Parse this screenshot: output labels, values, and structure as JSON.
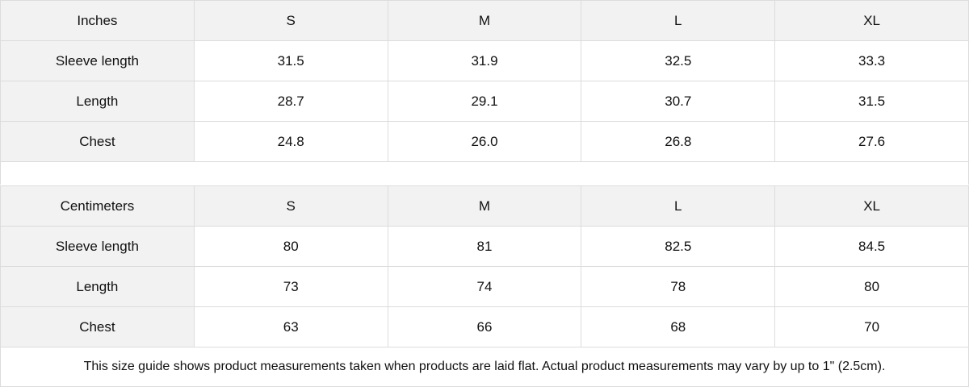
{
  "inches": {
    "header": [
      "Inches",
      "S",
      "M",
      "L",
      "XL"
    ],
    "rows": [
      [
        "Sleeve length",
        "31.5",
        "31.9",
        "32.5",
        "33.3"
      ],
      [
        "Length",
        "28.7",
        "29.1",
        "30.7",
        "31.5"
      ],
      [
        "Chest",
        "24.8",
        "26.0",
        "26.8",
        "27.6"
      ]
    ]
  },
  "centimeters": {
    "header": [
      "Centimeters",
      "S",
      "M",
      "L",
      "XL"
    ],
    "rows": [
      [
        "Sleeve length",
        "80",
        "81",
        "82.5",
        "84.5"
      ],
      [
        "Length",
        "73",
        "74",
        "78",
        "80"
      ],
      [
        "Chest",
        "63",
        "66",
        "68",
        "70"
      ]
    ]
  },
  "note": "This size guide shows product measurements taken when products are laid flat.  Actual product measurements may vary by up to 1\" (2.5cm).",
  "colors": {
    "label_bg": "#f2f2f2",
    "border": "#dcdcdc"
  }
}
